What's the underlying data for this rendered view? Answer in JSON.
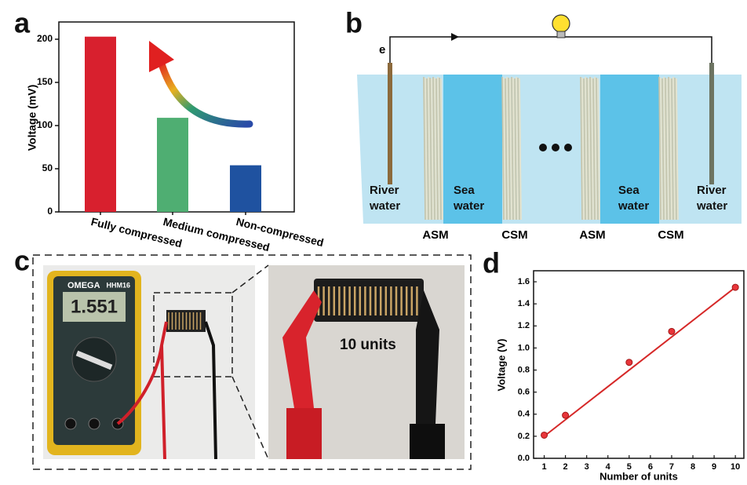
{
  "panels": [
    "a",
    "b",
    "c",
    "d"
  ],
  "chart_data": [
    {
      "type": "bar",
      "ylabel": "Voltage (mV)",
      "categories": [
        "Fully compressed",
        "Medium compressed",
        "Non-compressed"
      ],
      "values": [
        203,
        109,
        54
      ],
      "colors": [
        "#d8202e",
        "#4fae72",
        "#1f52a0"
      ],
      "ylim": [
        0,
        220
      ],
      "yticks": [
        0,
        50,
        100,
        150,
        200
      ]
    },
    {
      "type": "scatter",
      "xlabel": "Number of units",
      "ylabel": "Voltage (V)",
      "series": [
        {
          "color": "#e8353a",
          "x": [
            1,
            2,
            5,
            7,
            10
          ],
          "values": [
            0.21,
            0.39,
            0.87,
            1.15,
            1.55
          ]
        }
      ],
      "fit": {
        "color": "#d62828",
        "x": [
          1,
          10
        ],
        "values": [
          0.2,
          1.55
        ]
      },
      "xlim": [
        0.5,
        10.4
      ],
      "xticks": [
        1,
        2,
        3,
        4,
        5,
        6,
        7,
        8,
        9,
        10
      ],
      "ylim": [
        0,
        1.7
      ],
      "yticks": [
        {
          "value": 0,
          "label": "0.0"
        },
        0.2,
        0.4,
        0.6,
        0.8,
        {
          "value": 1,
          "label": "1.0"
        },
        1.2,
        1.4,
        1.6
      ]
    }
  ],
  "diagram": {
    "electron": "e",
    "water_labels": [
      "River water",
      "Sea water",
      "Sea water",
      "River water"
    ],
    "membranes": [
      "ASM",
      "CSM",
      "ASM",
      "CSM"
    ]
  },
  "photo": {
    "brand": "OMEGA",
    "model": "HHM16",
    "reading": "1.551",
    "caption": "10 units"
  }
}
